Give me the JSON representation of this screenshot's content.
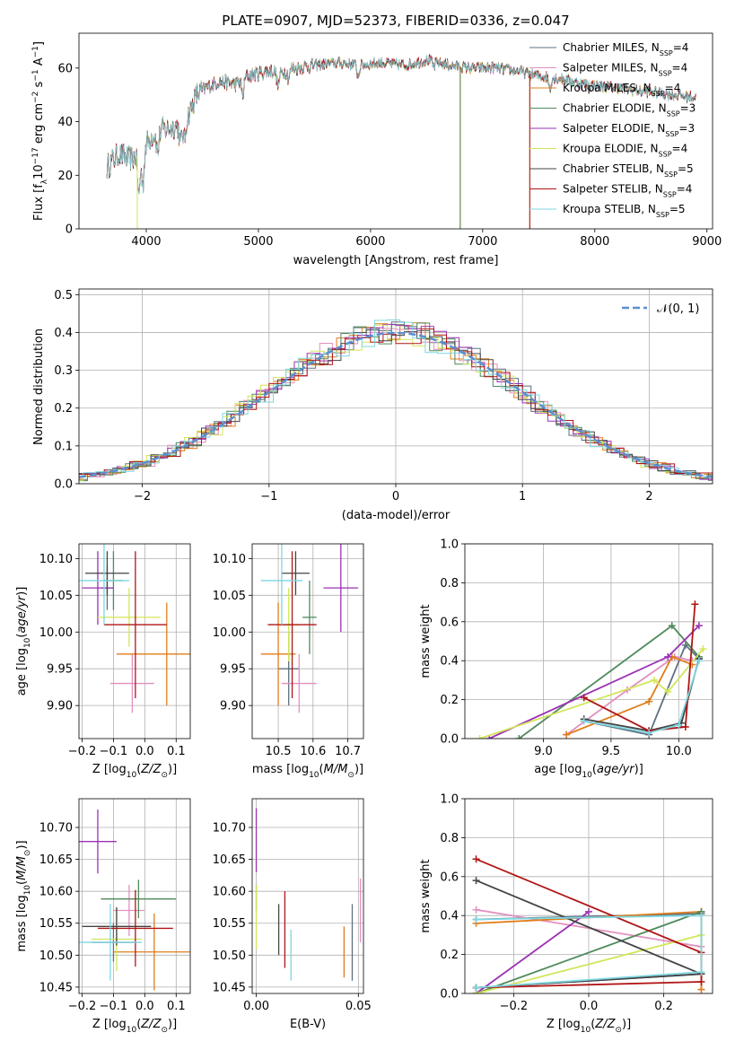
{
  "colors": {
    "chabrier_miles": "#5d7080",
    "salpeter_miles": "#e38fbf",
    "kroupa_miles": "#e07d1a",
    "chabrier_elodie": "#4f8a5c",
    "salpeter_elodie": "#9b31b4",
    "kroupa_elodie": "#d2e65a",
    "chabrier_stelib": "#444444",
    "salpeter_stelib": "#b01515",
    "kroupa_stelib": "#7fd6e0",
    "gauss": "#5b8fd1"
  },
  "legend_order": [
    "chabrier_miles",
    "salpeter_miles",
    "kroupa_miles",
    "chabrier_elodie",
    "salpeter_elodie",
    "kroupa_elodie",
    "chabrier_stelib",
    "salpeter_stelib",
    "kroupa_stelib"
  ],
  "chart_data": [
    {
      "id": "spectrum",
      "type": "line",
      "title": "PLATE=0907, MJD=52373, FIBERID=0336, z=0.047",
      "xlabel": "wavelength [Angstrom, rest frame]",
      "ylabel": "Flux [fλ10⁻¹⁷ erg cm⁻² s⁻¹ A⁻¹]",
      "xlim": [
        3400,
        9050
      ],
      "ylim": [
        0,
        73
      ],
      "xticks": [
        4000,
        5000,
        6000,
        7000,
        8000,
        9000
      ],
      "yticks": [
        0,
        20,
        40,
        60
      ],
      "grid": false,
      "legend_position": "upper right",
      "legend_sub": "SSP",
      "series": [
        {
          "key": "chabrier_miles",
          "name": "Chabrier MILES, N",
          "nssp": "=4"
        },
        {
          "key": "salpeter_miles",
          "name": "Salpeter MILES, N",
          "nssp": "=4"
        },
        {
          "key": "kroupa_miles",
          "name": "Kroupa MILES, N",
          "nssp": "=4"
        },
        {
          "key": "chabrier_elodie",
          "name": "Chabrier ELODIE, N",
          "nssp": "=3"
        },
        {
          "key": "salpeter_elodie",
          "name": "Salpeter ELODIE, N",
          "nssp": "=3"
        },
        {
          "key": "kroupa_elodie",
          "name": "Kroupa ELODIE, N",
          "nssp": "=4"
        },
        {
          "key": "chabrier_stelib",
          "name": "Chabrier STELIB, N",
          "nssp": "=5"
        },
        {
          "key": "salpeter_stelib",
          "name": "Salpeter STELIB, N",
          "nssp": "=4"
        },
        {
          "key": "kroupa_stelib",
          "name": "Kroupa STELIB, N",
          "nssp": "=5"
        }
      ],
      "continuum": [
        [
          3650,
          23
        ],
        [
          3750,
          28
        ],
        [
          3850,
          26
        ],
        [
          3950,
          28
        ],
        [
          4050,
          35
        ],
        [
          4150,
          37
        ],
        [
          4250,
          38
        ],
        [
          4350,
          40
        ],
        [
          4450,
          50
        ],
        [
          4550,
          53
        ],
        [
          4650,
          55
        ],
        [
          4800,
          54
        ],
        [
          4900,
          57
        ],
        [
          5000,
          58
        ],
        [
          5100,
          59
        ],
        [
          5200,
          58
        ],
        [
          5300,
          60
        ],
        [
          5500,
          61
        ],
        [
          5700,
          62
        ],
        [
          5900,
          61
        ],
        [
          6100,
          62
        ],
        [
          6300,
          61
        ],
        [
          6500,
          63
        ],
        [
          6700,
          61
        ],
        [
          6900,
          60
        ],
        [
          7100,
          60
        ],
        [
          7300,
          59
        ],
        [
          7500,
          57
        ],
        [
          7700,
          56
        ],
        [
          7900,
          54
        ],
        [
          8100,
          53
        ],
        [
          8300,
          52
        ],
        [
          8500,
          51
        ],
        [
          8700,
          50
        ],
        [
          8900,
          49
        ]
      ],
      "dropouts": [
        {
          "key": "kroupa_elodie",
          "x": 3920
        },
        {
          "key": "kroupa_miles",
          "x": 6800
        },
        {
          "key": "kroupa_elodie",
          "x": 6800
        },
        {
          "key": "chabrier_elodie",
          "x": 6800
        },
        {
          "key": "kroupa_miles",
          "x": 7420
        },
        {
          "key": "salpeter_stelib",
          "x": 7420
        }
      ]
    },
    {
      "id": "residuals",
      "type": "histogram",
      "xlabel": "(data-model)/error",
      "ylabel": "Normed distribution",
      "xlim": [
        -2.5,
        2.5
      ],
      "ylim": [
        0,
        0.515
      ],
      "xticks": [
        -2,
        -1,
        0,
        1,
        2
      ],
      "yticks": [
        0.0,
        0.1,
        0.2,
        0.3,
        0.4,
        0.5
      ],
      "grid": true,
      "legend_position": "upper right",
      "gaussian_label": "𝒩(0, 1)",
      "bin_width": 0.1
    },
    {
      "id": "z_age",
      "type": "errorbar",
      "xlabel": "Z [log₁₀(Z/Z⊙)]",
      "ylabel": "age  [log₁₀(age/yr)]",
      "xlim": [
        -0.21,
        0.145
      ],
      "ylim": [
        9.855,
        10.12
      ],
      "xticks": [
        -0.2,
        -0.1,
        0.0,
        0.1
      ],
      "yticks": [
        9.9,
        9.95,
        10.0,
        10.05,
        10.1
      ],
      "grid": true,
      "points": [
        {
          "key": "chabrier_miles",
          "x": -0.12,
          "xerr": 0.02,
          "y": 10.06,
          "yerr": 0.03
        },
        {
          "key": "salpeter_miles",
          "x": -0.04,
          "xerr": 0.07,
          "y": 9.93,
          "yerr": 0.04
        },
        {
          "key": "kroupa_miles",
          "x": 0.07,
          "xerr": 0.16,
          "y": 9.97,
          "yerr": 0.07
        },
        {
          "key": "chabrier_elodie",
          "x": -0.1,
          "xerr": 0.03,
          "y": 10.07,
          "yerr": 0.04
        },
        {
          "key": "salpeter_elodie",
          "x": -0.15,
          "xerr": 0.05,
          "y": 10.06,
          "yerr": 0.05
        },
        {
          "key": "kroupa_elodie",
          "x": -0.05,
          "xerr": 0.1,
          "y": 10.02,
          "yerr": 0.04
        },
        {
          "key": "chabrier_stelib",
          "x": -0.12,
          "xerr": 0.07,
          "y": 10.08,
          "yerr": 0.03
        },
        {
          "key": "salpeter_stelib",
          "x": -0.03,
          "xerr": 0.1,
          "y": 10.01,
          "yerr": 0.1
        },
        {
          "key": "kroupa_stelib",
          "x": -0.13,
          "xerr": 0.08,
          "y": 10.07,
          "yerr": 0.06
        }
      ]
    },
    {
      "id": "mass_age",
      "type": "errorbar",
      "xlabel": "mass [log₁₀(M/M⊙)]",
      "xlim": [
        10.425,
        10.745
      ],
      "ylim": [
        9.855,
        10.12
      ],
      "xticks": [
        10.5,
        10.6,
        10.7
      ],
      "yticks": [
        9.9,
        9.95,
        10.0,
        10.05,
        10.1
      ],
      "grid": true,
      "points": [
        {
          "key": "chabrier_miles",
          "x": 10.53,
          "xerr": 0.03,
          "y": 9.95,
          "yerr": 0.05
        },
        {
          "key": "salpeter_miles",
          "x": 10.56,
          "xerr": 0.05,
          "y": 9.93,
          "yerr": 0.04
        },
        {
          "key": "kroupa_miles",
          "x": 10.5,
          "xerr": 0.05,
          "y": 9.97,
          "yerr": 0.07
        },
        {
          "key": "chabrier_elodie",
          "x": 10.59,
          "xerr": 0.02,
          "y": 10.02,
          "yerr": 0.05
        },
        {
          "key": "salpeter_elodie",
          "x": 10.68,
          "xerr": 0.05,
          "y": 10.06,
          "yerr": 0.06
        },
        {
          "key": "kroupa_elodie",
          "x": 10.53,
          "xerr": 0.03,
          "y": 10.01,
          "yerr": 0.05
        },
        {
          "key": "chabrier_stelib",
          "x": 10.55,
          "xerr": 0.04,
          "y": 10.08,
          "yerr": 0.03
        },
        {
          "key": "salpeter_stelib",
          "x": 10.54,
          "xerr": 0.07,
          "y": 10.01,
          "yerr": 0.1
        },
        {
          "key": "kroupa_stelib",
          "x": 10.51,
          "xerr": 0.06,
          "y": 10.07,
          "yerr": 0.06
        }
      ]
    },
    {
      "id": "age_weight",
      "type": "line",
      "xlabel": "age  [log₁₀(age/yr)]",
      "ylabel": "mass weight",
      "xlim": [
        8.42,
        10.25
      ],
      "ylim": [
        0.0,
        1.0
      ],
      "xticks": [
        9.0,
        9.5,
        10.0
      ],
      "yticks": [
        0.0,
        0.2,
        0.4,
        0.6,
        0.8,
        1.0
      ],
      "grid": true,
      "series": [
        {
          "key": "chabrier_miles",
          "x": [
            9.3,
            9.78,
            10.05,
            10.15
          ],
          "y": [
            0.09,
            0.02,
            0.48,
            0.41
          ]
        },
        {
          "key": "salpeter_miles",
          "x": [
            9.17,
            9.62,
            9.97,
            10.1
          ],
          "y": [
            0.02,
            0.25,
            0.42,
            0.4
          ]
        },
        {
          "key": "kroupa_miles",
          "x": [
            9.17,
            9.78,
            9.95,
            10.1
          ],
          "y": [
            0.02,
            0.19,
            0.42,
            0.38
          ]
        },
        {
          "key": "chabrier_elodie",
          "x": [
            8.82,
            9.95,
            10.15
          ],
          "y": [
            0.0,
            0.58,
            0.42
          ]
        },
        {
          "key": "salpeter_elodie",
          "x": [
            8.6,
            9.92,
            10.15
          ],
          "y": [
            0.0,
            0.42,
            0.58
          ]
        },
        {
          "key": "kroupa_elodie",
          "x": [
            8.53,
            9.82,
            9.92,
            10.18
          ],
          "y": [
            0.0,
            0.3,
            0.24,
            0.46
          ]
        },
        {
          "key": "chabrier_stelib",
          "x": [
            9.3,
            9.78,
            10.02,
            10.15
          ],
          "y": [
            0.1,
            0.04,
            0.08,
            0.41
          ]
        },
        {
          "key": "salpeter_stelib",
          "x": [
            9.3,
            9.78,
            10.05,
            10.12
          ],
          "y": [
            0.21,
            0.04,
            0.06,
            0.69
          ]
        },
        {
          "key": "kroupa_stelib",
          "x": [
            9.3,
            9.78,
            10.0,
            10.15
          ],
          "y": [
            0.09,
            0.03,
            0.07,
            0.4
          ]
        }
      ]
    },
    {
      "id": "z_mass",
      "type": "errorbar",
      "xlabel": "Z [log₁₀(Z/Z⊙)]",
      "ylabel": "mass [log₁₀(M/M⊙)]",
      "xlim": [
        -0.21,
        0.145
      ],
      "ylim": [
        10.44,
        10.745
      ],
      "xticks": [
        -0.2,
        -0.1,
        0.0,
        0.1
      ],
      "yticks": [
        10.45,
        10.5,
        10.55,
        10.6,
        10.65,
        10.7
      ],
      "grid": true,
      "points": [
        {
          "key": "chabrier_miles",
          "x": -0.1,
          "xerr": 0.07,
          "y": 10.52,
          "yerr": 0.03
        },
        {
          "key": "salpeter_miles",
          "x": -0.05,
          "xerr": 0.05,
          "y": 10.57,
          "yerr": 0.04
        },
        {
          "key": "kroupa_miles",
          "x": 0.03,
          "xerr": 0.13,
          "y": 10.505,
          "yerr": 0.06
        },
        {
          "key": "chabrier_elodie",
          "x": -0.02,
          "xerr": 0.12,
          "y": 10.588,
          "yerr": 0.03
        },
        {
          "key": "salpeter_elodie",
          "x": -0.15,
          "xerr": 0.06,
          "y": 10.678,
          "yerr": 0.05
        },
        {
          "key": "kroupa_elodie",
          "x": -0.09,
          "xerr": 0.08,
          "y": 10.525,
          "yerr": 0.05
        },
        {
          "key": "chabrier_stelib",
          "x": -0.09,
          "xerr": 0.11,
          "y": 10.545,
          "yerr": 0.03
        },
        {
          "key": "salpeter_stelib",
          "x": -0.03,
          "xerr": 0.12,
          "y": 10.542,
          "yerr": 0.06
        },
        {
          "key": "kroupa_stelib",
          "x": -0.11,
          "xerr": 0.1,
          "y": 10.52,
          "yerr": 0.06
        }
      ]
    },
    {
      "id": "ebv_mass",
      "type": "errorbar",
      "xlabel": "E(B-V)",
      "xlim": [
        -0.002,
        0.0525
      ],
      "ylim": [
        10.44,
        10.745
      ],
      "xticks": [
        0.0,
        0.05
      ],
      "yticks": [
        10.45,
        10.5,
        10.55,
        10.6,
        10.65,
        10.7
      ],
      "grid": true,
      "points": [
        {
          "key": "chabrier_miles",
          "x": 0.047,
          "xerr": 0,
          "y": 10.52,
          "yerr": 0.06
        },
        {
          "key": "salpeter_miles",
          "x": 0.051,
          "xerr": 0,
          "y": 10.57,
          "yerr": 0.05
        },
        {
          "key": "kroupa_miles",
          "x": 0.043,
          "xerr": 0,
          "y": 10.505,
          "yerr": 0.04
        },
        {
          "key": "chabrier_elodie",
          "x": 0.0,
          "xerr": 0,
          "y": 10.59,
          "yerr": 0.02
        },
        {
          "key": "salpeter_elodie",
          "x": 0.0,
          "xerr": 0,
          "y": 10.68,
          "yerr": 0.05
        },
        {
          "key": "kroupa_elodie",
          "x": 0.0,
          "xerr": 0,
          "y": 10.56,
          "yerr": 0.05
        },
        {
          "key": "chabrier_stelib",
          "x": 0.011,
          "xerr": 0,
          "y": 10.54,
          "yerr": 0.04
        },
        {
          "key": "salpeter_stelib",
          "x": 0.014,
          "xerr": 0,
          "y": 10.54,
          "yerr": 0.06
        },
        {
          "key": "kroupa_stelib",
          "x": 0.017,
          "xerr": 0,
          "y": 10.5,
          "yerr": 0.04
        }
      ]
    },
    {
      "id": "z_weight",
      "type": "line",
      "xlabel": "Z [log₁₀(Z/Z⊙)]",
      "ylabel": "mass weight",
      "xlim": [
        -0.33,
        0.33
      ],
      "ylim": [
        0.0,
        1.0
      ],
      "xticks": [
        -0.2,
        0.0,
        0.2
      ],
      "yticks": [
        0.0,
        0.2,
        0.4,
        0.6,
        0.8,
        1.0
      ],
      "grid": true,
      "series": [
        {
          "key": "chabrier_miles",
          "x": [
            -0.3,
            0.3,
            0.3,
            -0.3
          ],
          "y": [
            0.03,
            0.1,
            0.41,
            0.38
          ]
        },
        {
          "key": "salpeter_miles",
          "x": [
            -0.3,
            0.3,
            0.3
          ],
          "y": [
            0.43,
            0.24,
            0.02
          ]
        },
        {
          "key": "kroupa_miles",
          "x": [
            -0.3,
            0.3,
            0.3
          ],
          "y": [
            0.36,
            0.42,
            0.02
          ]
        },
        {
          "key": "chabrier_elodie",
          "x": [
            -0.3,
            0.3
          ],
          "y": [
            0.0,
            0.42
          ]
        },
        {
          "key": "salpeter_elodie",
          "x": [
            -0.3,
            0.0
          ],
          "y": [
            0.0,
            0.42
          ]
        },
        {
          "key": "kroupa_elodie",
          "x": [
            -0.3,
            0.3
          ],
          "y": [
            0.0,
            0.3
          ]
        },
        {
          "key": "chabrier_stelib",
          "x": [
            -0.3,
            0.3,
            -0.3
          ],
          "y": [
            0.03,
            0.1,
            0.58
          ]
        },
        {
          "key": "salpeter_stelib",
          "x": [
            -0.3,
            0.3,
            0.3,
            -0.3
          ],
          "y": [
            0.03,
            0.06,
            0.21,
            0.69
          ]
        },
        {
          "key": "kroupa_stelib",
          "x": [
            -0.3,
            0.3,
            0.3,
            -0.3
          ],
          "y": [
            0.03,
            0.11,
            0.4,
            0.38
          ]
        }
      ]
    }
  ]
}
